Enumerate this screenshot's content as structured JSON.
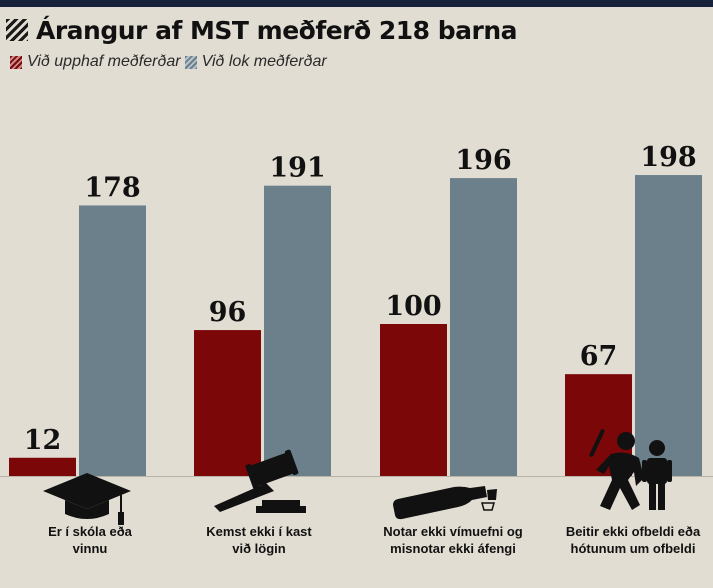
{
  "title": "Árangur af MST meðferð 218 barna",
  "legend": {
    "start": "Við upphaf meðferðar",
    "end": "Við lok meðferðar"
  },
  "colors": {
    "start": "#7b0708",
    "end": "#6c808c",
    "background": "#e2ddd3",
    "topbar": "#18213a",
    "icon": "#111111"
  },
  "chart_data": {
    "type": "bar",
    "title": "Árangur af MST meðferð 218 barna",
    "categories": [
      "Er í skóla eða vinnu",
      "Kemst ekki í kast við lögin",
      "Notar ekki vímuefni og misnotar ekki áfengi",
      "Beitir ekki ofbeldi eða hótunum um ofbeldi"
    ],
    "series": [
      {
        "name": "Við upphaf meðferðar",
        "values": [
          12,
          96,
          100,
          67
        ]
      },
      {
        "name": "Við lok meðferðar",
        "values": [
          178,
          191,
          196,
          198
        ]
      }
    ],
    "ylim": [
      0,
      218
    ],
    "grid": false,
    "legend_position": "top-left"
  },
  "category_labels": [
    "Er í skóla eða\nvinnu",
    "Kemst ekki í kast\nvið lögin",
    "Notar ekki vímuefni og\nmisnotar ekki áfengi",
    "Beitir ekki ofbeldi eða\nhótunum um ofbeldi"
  ],
  "icons": [
    "graduation-cap-icon",
    "gavel-icon",
    "bottle-icon",
    "violence-icon"
  ]
}
